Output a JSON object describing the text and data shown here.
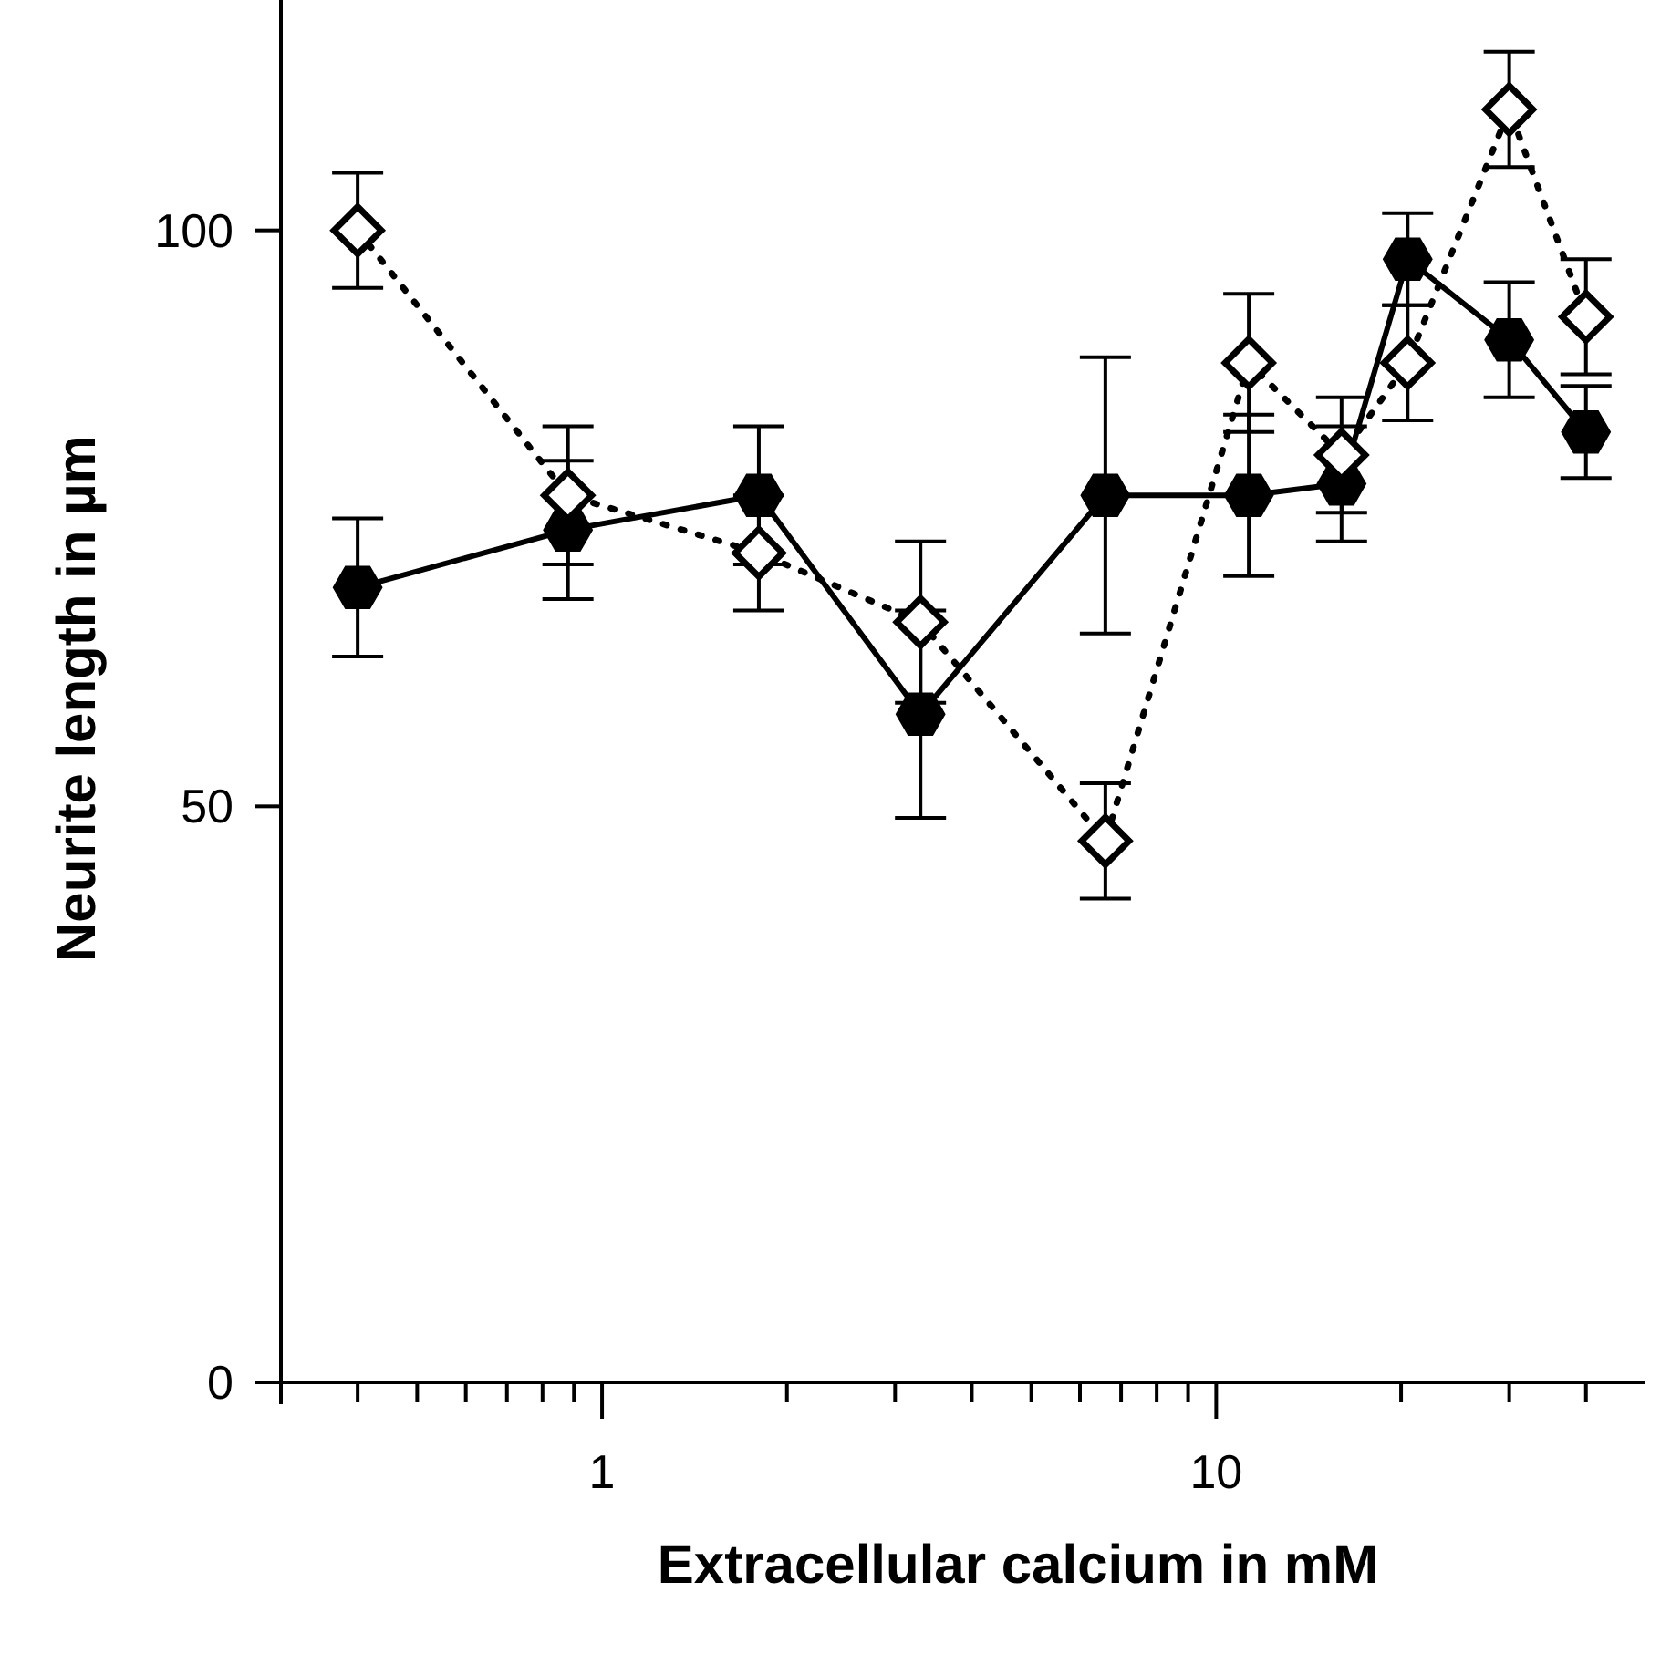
{
  "chart_data": {
    "type": "line",
    "xlabel": "Extracellular calcium in mM",
    "ylabel": "Neurite length in µm",
    "log": "x",
    "x": [
      0.4,
      0.88,
      1.8,
      3.3,
      6.6,
      11.3,
      16,
      20.5,
      30,
      40
    ],
    "xlim": [
      0.3,
      50
    ],
    "xticks": [
      {
        "value": 0.4,
        "label": null
      },
      {
        "value": 0.5,
        "label": null
      },
      {
        "value": 0.6,
        "label": null
      },
      {
        "value": 0.7,
        "label": null
      },
      {
        "value": 0.8,
        "label": null
      },
      {
        "value": 0.9,
        "label": null
      },
      1,
      {
        "value": 2,
        "label": null
      },
      {
        "value": 3,
        "label": null
      },
      {
        "value": 4,
        "label": null
      },
      {
        "value": 5,
        "label": null
      },
      {
        "value": 6,
        "label": null
      },
      {
        "value": 7,
        "label": null
      },
      {
        "value": 8,
        "label": null
      },
      {
        "value": 9,
        "label": null
      },
      10,
      {
        "value": 20,
        "label": null
      },
      {
        "value": 30,
        "label": null
      },
      {
        "value": 40,
        "label": null
      }
    ],
    "ylim": [
      0,
      120
    ],
    "yticks": [
      0,
      50,
      100
    ],
    "grid": false,
    "series": [
      {
        "color": "#000000",
        "marker": "circle",
        "line_style": "solid",
        "values": [
          69,
          74,
          77,
          58,
          77,
          77,
          78,
          97.5,
          90.5,
          82.5
        ],
        "errors": [
          6,
          6,
          6,
          9,
          12,
          7,
          5,
          4,
          5,
          4
        ]
      },
      {
        "color": "#000000",
        "marker": "diamond",
        "line_style": "dotted",
        "values": [
          100,
          77,
          72,
          66,
          47,
          88.5,
          80.5,
          88.5,
          110.5,
          92.5
        ],
        "errors": [
          5,
          6,
          5,
          7,
          5,
          6,
          5,
          5,
          5,
          5
        ]
      }
    ]
  }
}
